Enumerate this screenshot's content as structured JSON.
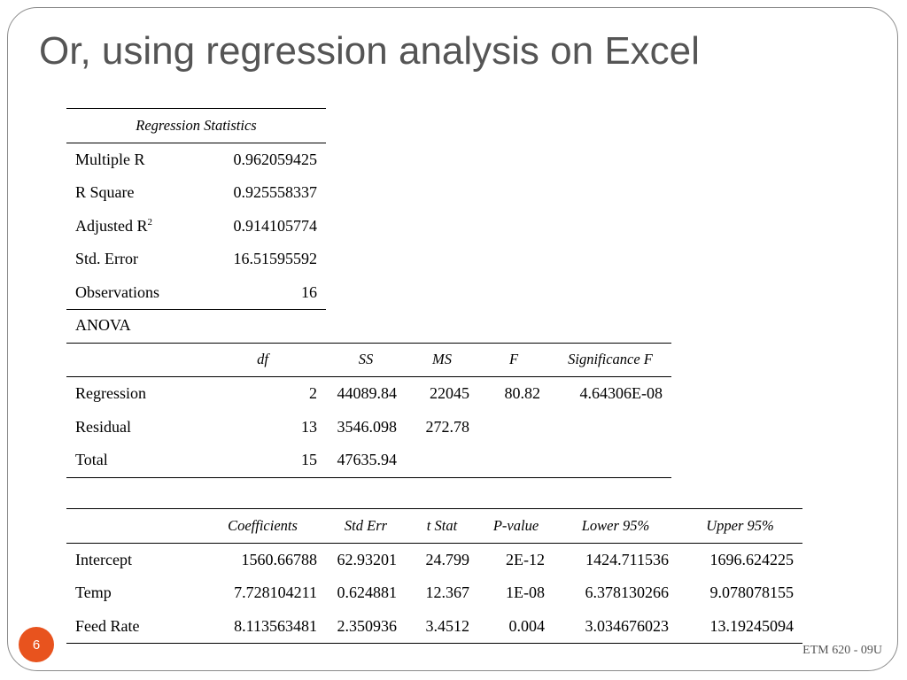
{
  "slide": {
    "title": "Or, using regression analysis on Excel",
    "page_number": "6",
    "footer": "ETM 620 - 09U"
  },
  "regression_stats": {
    "header": "Regression Statistics",
    "rows": [
      {
        "label": "Multiple R",
        "value": "0.962059425"
      },
      {
        "label": "R Square",
        "value": "0.925558337"
      },
      {
        "label": "Adjusted R",
        "sup": "2",
        "value": "0.914105774"
      },
      {
        "label": "Std. Error",
        "value": "16.51595592"
      },
      {
        "label": "Observations",
        "value": "16"
      }
    ]
  },
  "anova": {
    "label": "ANOVA",
    "headers": [
      "",
      "df",
      "SS",
      "MS",
      "F",
      "Significance F"
    ],
    "rows": [
      [
        "Regression",
        "2",
        "44089.84",
        "22045",
        "80.82",
        "4.64306E-08"
      ],
      [
        "Residual",
        "13",
        "3546.098",
        "272.78",
        "",
        ""
      ],
      [
        "Total",
        "15",
        "47635.94",
        "",
        "",
        ""
      ]
    ]
  },
  "coefficients": {
    "headers": [
      "",
      "Coefficients",
      "Std Err",
      "t Stat",
      "P-value",
      "Lower 95%",
      "Upper 95%"
    ],
    "rows": [
      [
        "Intercept",
        "1560.66788",
        "62.93201",
        "24.799",
        "2E-12",
        "1424.711536",
        "1696.624225"
      ],
      [
        "Temp",
        "7.728104211",
        "0.624881",
        "12.367",
        "1E-08",
        "6.378130266",
        "9.078078155"
      ],
      [
        "Feed Rate",
        "8.113563481",
        "2.350936",
        "3.4512",
        "0.004",
        "3.034676023",
        "13.19245094"
      ]
    ]
  }
}
